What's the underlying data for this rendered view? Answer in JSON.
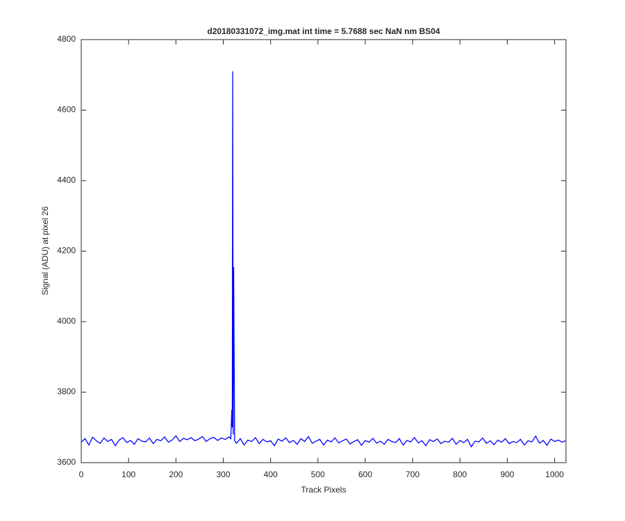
{
  "chart_data": {
    "type": "line",
    "title": "d20180331072_img.mat int time = 5.7688 sec  NaN nm BS04",
    "x_label": "Track Pixels",
    "y_label": "Signal (ADU) at pixel 26",
    "color": "#0000ff",
    "xlim": [
      0,
      1024
    ],
    "xticks": [
      0,
      100,
      200,
      300,
      400,
      500,
      600,
      700,
      800,
      900,
      1000
    ],
    "ylim": [
      3600,
      4800
    ],
    "yticks": [
      3600,
      3800,
      4000,
      4200,
      4400,
      4600,
      4800
    ],
    "x": [
      0,
      8,
      16,
      24,
      32,
      40,
      48,
      56,
      64,
      72,
      80,
      88,
      96,
      104,
      112,
      120,
      128,
      136,
      144,
      152,
      160,
      168,
      176,
      184,
      192,
      200,
      208,
      216,
      224,
      232,
      240,
      248,
      256,
      264,
      272,
      280,
      288,
      296,
      304,
      312,
      316,
      318,
      319,
      320,
      321,
      322,
      324,
      328,
      336,
      344,
      352,
      360,
      368,
      376,
      384,
      392,
      400,
      408,
      416,
      424,
      432,
      440,
      448,
      456,
      464,
      472,
      480,
      488,
      496,
      504,
      512,
      520,
      528,
      536,
      544,
      552,
      560,
      568,
      576,
      584,
      592,
      600,
      608,
      616,
      624,
      632,
      640,
      648,
      656,
      664,
      672,
      680,
      688,
      696,
      704,
      712,
      720,
      728,
      736,
      744,
      752,
      760,
      768,
      776,
      784,
      792,
      800,
      808,
      816,
      824,
      832,
      840,
      848,
      856,
      864,
      872,
      880,
      888,
      896,
      904,
      912,
      920,
      928,
      936,
      944,
      952,
      960,
      968,
      976,
      984,
      992,
      1000,
      1008,
      1016,
      1023
    ],
    "values": [
      3658,
      3668,
      3650,
      3672,
      3662,
      3655,
      3670,
      3660,
      3666,
      3648,
      3664,
      3671,
      3657,
      3663,
      3652,
      3668,
      3661,
      3659,
      3670,
      3654,
      3666,
      3662,
      3673,
      3658,
      3664,
      3676,
      3660,
      3669,
      3665,
      3671,
      3662,
      3667,
      3674,
      3660,
      3668,
      3672,
      3663,
      3670,
      3666,
      3673,
      3668,
      3750,
      3700,
      4710,
      3680,
      4155,
      3662,
      3655,
      3668,
      3650,
      3664,
      3660,
      3671,
      3654,
      3666,
      3659,
      3662,
      3648,
      3667,
      3661,
      3670,
      3657,
      3663,
      3652,
      3668,
      3660,
      3674,
      3655,
      3661,
      3666,
      3650,
      3664,
      3659,
      3670,
      3656,
      3662,
      3667,
      3653,
      3660,
      3665,
      3649,
      3663,
      3658,
      3669,
      3655,
      3661,
      3652,
      3666,
      3660,
      3657,
      3668,
      3650,
      3663,
      3659,
      3671,
      3656,
      3662,
      3648,
      3665,
      3660,
      3667,
      3654,
      3661,
      3658,
      3669,
      3652,
      3663,
      3657,
      3666,
      3645,
      3661,
      3659,
      3670,
      3655,
      3662,
      3651,
      3664,
      3658,
      3668,
      3654,
      3660,
      3657,
      3666,
      3650,
      3662,
      3659,
      3675,
      3655,
      3663,
      3649,
      3667,
      3660,
      3664,
      3658,
      3662
    ]
  }
}
